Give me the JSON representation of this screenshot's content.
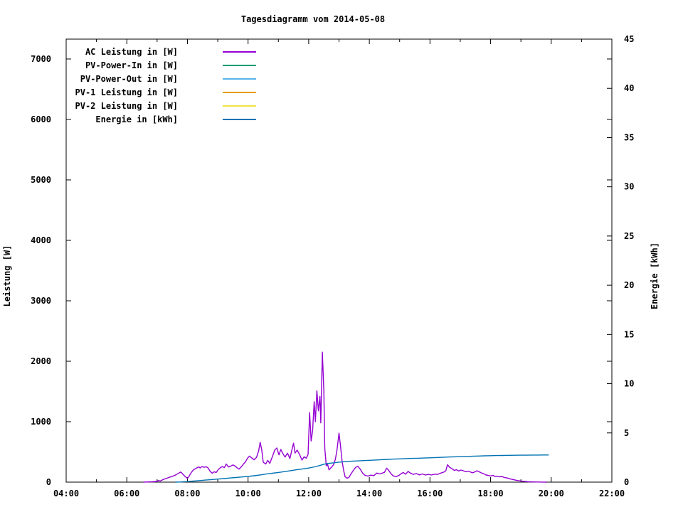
{
  "chart_data": {
    "type": "line",
    "title": "Tagesdiagramm vom 2014-05-08",
    "grid": false,
    "legend_position": "top-left-inside",
    "x_axis": {
      "label": "",
      "range_hours": [
        4,
        22
      ],
      "major_ticks": [
        [
          4,
          "04:00"
        ],
        [
          6,
          "06:00"
        ],
        [
          8,
          "08:00"
        ],
        [
          10,
          "10:00"
        ],
        [
          12,
          "12:00"
        ],
        [
          14,
          "14:00"
        ],
        [
          16,
          "16:00"
        ],
        [
          18,
          "18:00"
        ],
        [
          20,
          "20:00"
        ],
        [
          22,
          "22:00"
        ]
      ],
      "minor_tick_hours": [
        5,
        7,
        9,
        11,
        13,
        15,
        17,
        19,
        21
      ]
    },
    "y_left": {
      "label": "Leistung [W]",
      "range": [
        0,
        7329
      ],
      "ticks": [
        0,
        1000,
        2000,
        3000,
        4000,
        5000,
        6000,
        7000
      ]
    },
    "y_right": {
      "label": "Energie [kWh]",
      "range": [
        0,
        45
      ],
      "ticks": [
        0,
        5,
        10,
        15,
        20,
        25,
        30,
        35,
        40,
        45
      ]
    },
    "series": [
      {
        "name": "AC Leistung in [W]",
        "color": "#9400d3",
        "axis": "left",
        "points": [
          [
            6.55,
            0
          ],
          [
            6.7,
            4
          ],
          [
            6.85,
            6
          ],
          [
            7.0,
            12
          ],
          [
            7.05,
            28
          ],
          [
            7.1,
            18
          ],
          [
            7.2,
            45
          ],
          [
            7.3,
            60
          ],
          [
            7.4,
            80
          ],
          [
            7.5,
            95
          ],
          [
            7.6,
            115
          ],
          [
            7.7,
            145
          ],
          [
            7.78,
            168
          ],
          [
            7.85,
            130
          ],
          [
            7.92,
            95
          ],
          [
            8.0,
            62
          ],
          [
            8.05,
            95
          ],
          [
            8.12,
            155
          ],
          [
            8.2,
            205
          ],
          [
            8.3,
            232
          ],
          [
            8.37,
            252
          ],
          [
            8.42,
            235
          ],
          [
            8.48,
            258
          ],
          [
            8.55,
            245
          ],
          [
            8.62,
            255
          ],
          [
            8.68,
            235
          ],
          [
            8.75,
            178
          ],
          [
            8.82,
            148
          ],
          [
            8.88,
            172
          ],
          [
            8.95,
            160
          ],
          [
            9.02,
            210
          ],
          [
            9.08,
            235
          ],
          [
            9.15,
            258
          ],
          [
            9.22,
            240
          ],
          [
            9.28,
            300
          ],
          [
            9.35,
            250
          ],
          [
            9.42,
            262
          ],
          [
            9.5,
            285
          ],
          [
            9.57,
            268
          ],
          [
            9.63,
            240
          ],
          [
            9.7,
            215
          ],
          [
            9.78,
            255
          ],
          [
            9.85,
            300
          ],
          [
            9.92,
            340
          ],
          [
            9.98,
            395
          ],
          [
            10.05,
            430
          ],
          [
            10.12,
            400
          ],
          [
            10.2,
            370
          ],
          [
            10.28,
            410
          ],
          [
            10.35,
            520
          ],
          [
            10.4,
            660
          ],
          [
            10.45,
            540
          ],
          [
            10.5,
            330
          ],
          [
            10.58,
            300
          ],
          [
            10.65,
            360
          ],
          [
            10.72,
            310
          ],
          [
            10.8,
            420
          ],
          [
            10.88,
            530
          ],
          [
            10.95,
            565
          ],
          [
            11.02,
            450
          ],
          [
            11.08,
            540
          ],
          [
            11.15,
            470
          ],
          [
            11.22,
            415
          ],
          [
            11.3,
            480
          ],
          [
            11.38,
            390
          ],
          [
            11.45,
            545
          ],
          [
            11.5,
            645
          ],
          [
            11.55,
            480
          ],
          [
            11.62,
            530
          ],
          [
            11.7,
            455
          ],
          [
            11.78,
            365
          ],
          [
            11.85,
            420
          ],
          [
            11.92,
            395
          ],
          [
            11.98,
            460
          ],
          [
            12.03,
            1150
          ],
          [
            12.08,
            680
          ],
          [
            12.13,
            850
          ],
          [
            12.18,
            1330
          ],
          [
            12.22,
            1000
          ],
          [
            12.27,
            1510
          ],
          [
            12.32,
            1180
          ],
          [
            12.37,
            1420
          ],
          [
            12.4,
            980
          ],
          [
            12.45,
            2150
          ],
          [
            12.5,
            1500
          ],
          [
            12.53,
            560
          ],
          [
            12.58,
            270
          ],
          [
            12.62,
            300
          ],
          [
            12.67,
            205
          ],
          [
            12.72,
            230
          ],
          [
            12.78,
            260
          ],
          [
            12.83,
            300
          ],
          [
            12.88,
            380
          ],
          [
            12.93,
            520
          ],
          [
            13.0,
            810
          ],
          [
            13.05,
            600
          ],
          [
            13.1,
            350
          ],
          [
            13.15,
            200
          ],
          [
            13.2,
            90
          ],
          [
            13.27,
            65
          ],
          [
            13.33,
            80
          ],
          [
            13.4,
            140
          ],
          [
            13.48,
            200
          ],
          [
            13.55,
            245
          ],
          [
            13.62,
            262
          ],
          [
            13.7,
            215
          ],
          [
            13.78,
            150
          ],
          [
            13.85,
            115
          ],
          [
            13.95,
            100
          ],
          [
            14.05,
            115
          ],
          [
            14.15,
            108
          ],
          [
            14.25,
            150
          ],
          [
            14.33,
            135
          ],
          [
            14.42,
            148
          ],
          [
            14.5,
            162
          ],
          [
            14.57,
            232
          ],
          [
            14.63,
            200
          ],
          [
            14.7,
            150
          ],
          [
            14.78,
            105
          ],
          [
            14.88,
            92
          ],
          [
            14.97,
            108
          ],
          [
            15.05,
            140
          ],
          [
            15.12,
            160
          ],
          [
            15.2,
            132
          ],
          [
            15.28,
            178
          ],
          [
            15.35,
            150
          ],
          [
            15.45,
            128
          ],
          [
            15.55,
            142
          ],
          [
            15.65,
            120
          ],
          [
            15.75,
            135
          ],
          [
            15.85,
            118
          ],
          [
            15.95,
            128
          ],
          [
            16.05,
            118
          ],
          [
            16.15,
            132
          ],
          [
            16.25,
            128
          ],
          [
            16.35,
            148
          ],
          [
            16.45,
            165
          ],
          [
            16.52,
            185
          ],
          [
            16.58,
            288
          ],
          [
            16.65,
            245
          ],
          [
            16.72,
            225
          ],
          [
            16.8,
            195
          ],
          [
            16.88,
            205
          ],
          [
            16.95,
            185
          ],
          [
            17.02,
            200
          ],
          [
            17.1,
            188
          ],
          [
            17.18,
            172
          ],
          [
            17.25,
            182
          ],
          [
            17.32,
            170
          ],
          [
            17.4,
            155
          ],
          [
            17.48,
            168
          ],
          [
            17.55,
            188
          ],
          [
            17.62,
            172
          ],
          [
            17.7,
            152
          ],
          [
            17.78,
            138
          ],
          [
            17.85,
            118
          ],
          [
            17.92,
            112
          ],
          [
            18.0,
            102
          ],
          [
            18.08,
            112
          ],
          [
            18.15,
            92
          ],
          [
            18.22,
            98
          ],
          [
            18.3,
            88
          ],
          [
            18.38,
            92
          ],
          [
            18.45,
            78
          ],
          [
            18.55,
            68
          ],
          [
            18.65,
            52
          ],
          [
            18.75,
            42
          ],
          [
            18.85,
            30
          ],
          [
            18.95,
            22
          ],
          [
            19.05,
            15
          ],
          [
            19.15,
            10
          ],
          [
            19.25,
            6
          ],
          [
            19.4,
            4
          ],
          [
            19.55,
            2
          ],
          [
            19.7,
            1
          ],
          [
            19.85,
            0
          ]
        ]
      },
      {
        "name": "PV-Power-In in [W]",
        "color": "#009e73",
        "axis": "left",
        "points": []
      },
      {
        "name": "PV-Power-Out in [W]",
        "color": "#56b4e9",
        "axis": "left",
        "points": []
      },
      {
        "name": "PV-1 Leistung in [W]",
        "color": "#e69f00",
        "axis": "left",
        "points": []
      },
      {
        "name": "PV-2 Leistung in [W]",
        "color": "#f0e442",
        "axis": "left",
        "points": []
      },
      {
        "name": "Energie in [kWh]",
        "color": "#0072b2",
        "axis": "right",
        "points": [
          [
            7.6,
            0
          ],
          [
            7.8,
            0.02
          ],
          [
            8.0,
            0.06
          ],
          [
            8.2,
            0.11
          ],
          [
            8.4,
            0.16
          ],
          [
            8.6,
            0.21
          ],
          [
            8.8,
            0.26
          ],
          [
            9.0,
            0.31
          ],
          [
            9.2,
            0.36
          ],
          [
            9.4,
            0.42
          ],
          [
            9.6,
            0.47
          ],
          [
            9.8,
            0.53
          ],
          [
            10.0,
            0.58
          ],
          [
            10.2,
            0.65
          ],
          [
            10.4,
            0.73
          ],
          [
            10.6,
            0.82
          ],
          [
            10.8,
            0.9
          ],
          [
            11.0,
            0.98
          ],
          [
            11.2,
            1.07
          ],
          [
            11.4,
            1.16
          ],
          [
            11.6,
            1.26
          ],
          [
            11.8,
            1.34
          ],
          [
            12.0,
            1.43
          ],
          [
            12.2,
            1.55
          ],
          [
            12.4,
            1.72
          ],
          [
            12.5,
            1.82
          ],
          [
            12.6,
            1.88
          ],
          [
            12.8,
            1.96
          ],
          [
            13.0,
            2.03
          ],
          [
            13.2,
            2.08
          ],
          [
            13.4,
            2.12
          ],
          [
            13.6,
            2.15
          ],
          [
            13.8,
            2.19
          ],
          [
            14.0,
            2.22
          ],
          [
            14.2,
            2.25
          ],
          [
            14.4,
            2.28
          ],
          [
            14.6,
            2.31
          ],
          [
            14.8,
            2.34
          ],
          [
            15.0,
            2.36
          ],
          [
            15.2,
            2.39
          ],
          [
            15.4,
            2.41
          ],
          [
            15.6,
            2.43
          ],
          [
            15.8,
            2.45
          ],
          [
            16.0,
            2.47
          ],
          [
            16.2,
            2.5
          ],
          [
            16.4,
            2.52
          ],
          [
            16.6,
            2.55
          ],
          [
            16.8,
            2.57
          ],
          [
            17.0,
            2.59
          ],
          [
            17.2,
            2.61
          ],
          [
            17.4,
            2.63
          ],
          [
            17.6,
            2.65
          ],
          [
            17.8,
            2.67
          ],
          [
            18.0,
            2.69
          ],
          [
            18.2,
            2.7
          ],
          [
            18.4,
            2.71
          ],
          [
            18.6,
            2.72
          ],
          [
            18.8,
            2.73
          ],
          [
            19.0,
            2.74
          ],
          [
            19.2,
            2.74
          ],
          [
            19.4,
            2.75
          ],
          [
            19.6,
            2.75
          ],
          [
            19.8,
            2.76
          ],
          [
            19.92,
            2.76
          ]
        ]
      }
    ]
  }
}
